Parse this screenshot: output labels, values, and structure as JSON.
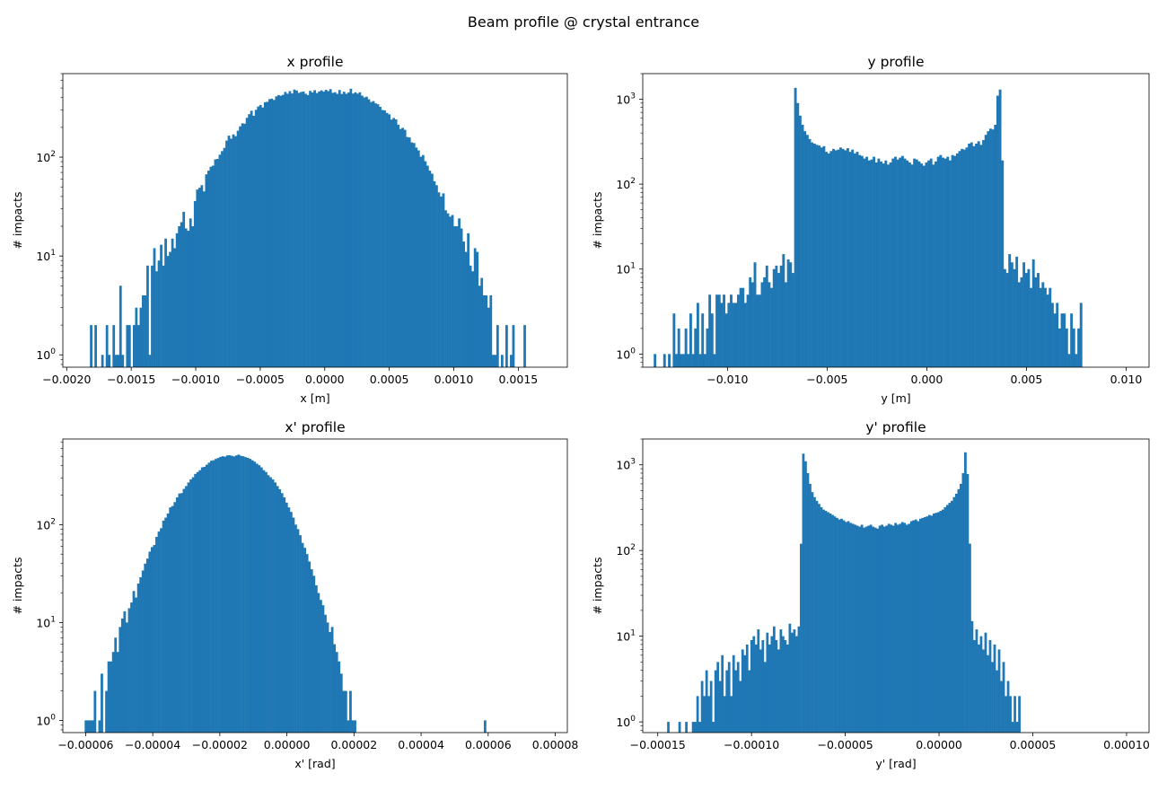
{
  "figure": {
    "suptitle": "Beam profile @ crystal entrance"
  },
  "chart_data": [
    {
      "type": "bar",
      "title": "x profile",
      "xlabel": "x [m]",
      "ylabel": "# impacts",
      "yscale": "log",
      "xlim": [
        -0.00203,
        0.00188
      ],
      "ylim": [
        0.75,
        700
      ],
      "xticks": [
        {
          "v": -0.002,
          "label": "−0.0020"
        },
        {
          "v": -0.0015,
          "label": "−0.0015"
        },
        {
          "v": -0.001,
          "label": "−0.0010"
        },
        {
          "v": -0.0005,
          "label": "−0.0005"
        },
        {
          "v": 0,
          "label": "0.0000"
        },
        {
          "v": 0.0005,
          "label": "0.0005"
        },
        {
          "v": 0.001,
          "label": "0.0010"
        },
        {
          "v": 0.0015,
          "label": "0.0015"
        }
      ],
      "yticks": [
        {
          "v": 1,
          "exp": "0"
        },
        {
          "v": 10,
          "exp": "1"
        },
        {
          "v": 100,
          "exp": "2"
        }
      ],
      "color": "#1f77b4",
      "bins": {
        "start": -0.00182,
        "width": 1.75e-05,
        "counts": [
          2,
          0,
          2,
          0,
          0,
          1,
          0,
          2,
          1,
          0,
          2,
          1,
          1,
          5,
          1,
          0,
          2,
          2,
          0,
          2,
          3,
          2,
          3,
          4,
          4,
          8,
          1,
          8,
          12,
          7,
          9,
          13,
          8,
          15,
          10,
          11,
          15,
          12,
          17,
          20,
          22,
          28,
          19,
          18,
          24,
          20,
          36,
          47,
          49,
          52,
          45,
          67,
          73,
          80,
          82,
          95,
          96,
          106,
          115,
          124,
          147,
          165,
          154,
          170,
          163,
          185,
          205,
          220,
          218,
          250,
          272,
          295,
          262,
          301,
          325,
          337,
          318,
          359,
          363,
          386,
          391,
          379,
          412,
          425,
          418,
          427,
          457,
          438,
          466,
          441,
          483,
          472,
          447,
          456,
          461,
          438,
          425,
          468,
          451,
          476,
          445,
          462,
          474,
          460,
          480,
          466,
          488,
          447,
          454,
          437,
          478,
          436,
          459,
          437,
          451,
          492,
          440,
          453,
          439,
          453,
          419,
          402,
          409,
          385,
          361,
          369,
          350,
          343,
          323,
          300,
          297,
          280,
          271,
          240,
          249,
          241,
          213,
          193,
          198,
          189,
          160,
          158,
          141,
          139,
          125,
          117,
          101,
          105,
          91,
          82,
          73,
          68,
          57,
          52,
          44,
          40,
          43,
          29,
          27,
          25,
          26,
          20,
          20,
          24,
          19,
          14,
          11,
          17,
          8,
          7,
          12,
          11,
          5,
          6,
          4,
          4,
          3,
          4,
          1,
          1,
          2,
          0,
          1,
          0,
          2,
          0,
          1,
          2,
          0,
          0,
          0,
          0,
          2
        ]
      }
    },
    {
      "type": "bar",
      "title": "y profile",
      "xlabel": "y [m]",
      "ylabel": "# impacts",
      "yscale": "log",
      "xlim": [
        -0.01425,
        0.01115
      ],
      "ylim": [
        0.7,
        2000
      ],
      "xticks": [
        {
          "v": -0.01,
          "label": "−0.010"
        },
        {
          "v": -0.005,
          "label": "−0.005"
        },
        {
          "v": 0,
          "label": "0.000"
        },
        {
          "v": 0.005,
          "label": "0.005"
        },
        {
          "v": 0.01,
          "label": "0.010"
        }
      ],
      "yticks": [
        {
          "v": 1,
          "exp": "0"
        },
        {
          "v": 10,
          "exp": "1"
        },
        {
          "v": 100,
          "exp": "2"
        },
        {
          "v": 1000,
          "exp": "3"
        }
      ],
      "color": "#1f77b4",
      "bins": {
        "start": -0.0137,
        "width": 0.0001194,
        "counts": [
          1,
          0,
          0,
          0,
          1,
          0,
          1,
          0,
          3,
          1,
          2,
          1,
          1,
          2,
          1,
          3,
          1,
          2,
          4,
          1,
          3,
          1,
          2,
          5,
          3,
          1,
          5,
          5,
          4,
          5,
          3,
          4,
          5,
          4,
          4,
          5,
          6,
          6,
          4,
          5,
          8,
          7,
          12,
          5,
          5,
          7,
          8,
          11,
          7,
          6,
          10,
          11,
          9,
          11,
          15,
          7,
          13,
          12,
          9,
          1360,
          900,
          640,
          500,
          420,
          380,
          340,
          310,
          300,
          290,
          285,
          270,
          280,
          240,
          230,
          245,
          260,
          250,
          255,
          270,
          260,
          250,
          265,
          240,
          255,
          230,
          240,
          220,
          215,
          200,
          210,
          190,
          195,
          210,
          180,
          200,
          185,
          175,
          190,
          170,
          180,
          200,
          210,
          195,
          205,
          215,
          200,
          190,
          180,
          170,
          200,
          195,
          185,
          175,
          165,
          180,
          190,
          200,
          170,
          185,
          210,
          220,
          205,
          200,
          210,
          190,
          220,
          215,
          230,
          245,
          260,
          255,
          270,
          300,
          310,
          280,
          300,
          320,
          290,
          330,
          380,
          420,
          450,
          440,
          500,
          1100,
          1300,
          190,
          10,
          9,
          15,
          12,
          10,
          14,
          7,
          8,
          12,
          9,
          10,
          6,
          13,
          8,
          9,
          6,
          7,
          6,
          5,
          6,
          4,
          3,
          4,
          2,
          3,
          3,
          2,
          1,
          3,
          2,
          1,
          2,
          4
        ]
      }
    },
    {
      "type": "bar",
      "title": "x' profile",
      "xlabel": "x' [rad]",
      "ylabel": "# impacts",
      "yscale": "log",
      "xlim": [
        -6.68e-05,
        8.36e-05
      ],
      "ylim": [
        0.75,
        750
      ],
      "xticks": [
        {
          "v": -6e-05,
          "label": "−0.00006"
        },
        {
          "v": -4e-05,
          "label": "−0.00004"
        },
        {
          "v": -2e-05,
          "label": "−0.00002"
        },
        {
          "v": 0,
          "label": "0.00000"
        },
        {
          "v": 2e-05,
          "label": "0.00002"
        },
        {
          "v": 4e-05,
          "label": "0.00004"
        },
        {
          "v": 6e-05,
          "label": "0.00006"
        },
        {
          "v": 8e-05,
          "label": "0.00008"
        }
      ],
      "yticks": [
        {
          "v": 1,
          "exp": "0"
        },
        {
          "v": 10,
          "exp": "1"
        },
        {
          "v": 100,
          "exp": "2"
        }
      ],
      "color": "#1f77b4",
      "bins": {
        "start": -6.03e-05,
        "width": 6.8e-07,
        "counts": [
          1,
          1,
          1,
          1,
          2,
          0,
          1,
          3,
          0,
          2,
          4,
          4,
          5,
          7,
          5,
          9,
          11,
          13,
          10,
          14,
          16,
          21,
          18,
          25,
          29,
          34,
          40,
          45,
          53,
          59,
          62,
          75,
          85,
          92,
          110,
          118,
          130,
          150,
          155,
          170,
          190,
          208,
          210,
          232,
          248,
          270,
          290,
          305,
          330,
          345,
          360,
          385,
          390,
          410,
          430,
          450,
          455,
          470,
          480,
          492,
          500,
          495,
          510,
          512,
          505,
          498,
          510,
          520,
          505,
          500,
          490,
          482,
          470,
          455,
          440,
          420,
          405,
          385,
          360,
          345,
          320,
          305,
          290,
          270,
          248,
          230,
          210,
          190,
          168,
          150,
          135,
          118,
          100,
          90,
          78,
          65,
          58,
          50,
          42,
          35,
          30,
          24,
          20,
          17,
          15,
          12,
          10,
          8,
          9,
          6,
          5,
          4,
          3,
          2,
          2,
          1,
          2,
          1,
          1,
          0,
          0,
          0,
          0,
          0,
          0,
          0,
          0,
          0,
          0,
          0,
          0,
          0,
          0,
          0,
          0,
          0,
          0,
          0,
          0,
          0,
          0,
          0,
          0,
          0,
          0,
          0,
          0,
          0,
          0,
          0,
          0,
          0,
          0,
          0,
          0,
          0,
          0,
          0,
          0,
          0,
          0,
          0,
          0,
          0,
          0,
          0,
          0,
          0,
          0,
          0,
          0,
          0,
          0,
          0,
          0,
          1
        ]
      }
    },
    {
      "type": "bar",
      "title": "y' profile",
      "xlabel": "y' [rad]",
      "ylabel": "# impacts",
      "yscale": "log",
      "xlim": [
        -0.000158,
        0.000112
      ],
      "ylim": [
        0.75,
        2000
      ],
      "xticks": [
        {
          "v": -0.00015,
          "label": "−0.00015"
        },
        {
          "v": -0.0001,
          "label": "−0.00010"
        },
        {
          "v": -5e-05,
          "label": "−0.00005"
        },
        {
          "v": 0,
          "label": "0.00000"
        },
        {
          "v": 5e-05,
          "label": "0.00005"
        },
        {
          "v": 0.0001,
          "label": "0.00010"
        }
      ],
      "yticks": [
        {
          "v": 1,
          "exp": "0"
        },
        {
          "v": 10,
          "exp": "1"
        },
        {
          "v": 100,
          "exp": "2"
        },
        {
          "v": 1000,
          "exp": "3"
        }
      ],
      "color": "#1f77b4",
      "bins": {
        "start": -0.000145,
        "width": 1.2e-06,
        "counts": [
          1,
          0,
          0,
          0,
          0,
          1,
          0,
          0,
          1,
          0,
          0,
          1,
          1,
          2,
          1,
          3,
          2,
          4,
          2,
          3,
          1,
          4,
          5,
          3,
          6,
          2,
          4,
          5,
          2,
          6,
          4,
          5,
          3,
          7,
          6,
          8,
          4,
          9,
          10,
          8,
          12,
          7,
          9,
          5,
          11,
          8,
          10,
          13,
          9,
          7,
          12,
          10,
          9,
          8,
          14,
          11,
          12,
          10,
          13,
          120,
          1350,
          1100,
          800,
          600,
          480,
          420,
          380,
          350,
          320,
          300,
          290,
          280,
          270,
          260,
          250,
          240,
          230,
          235,
          225,
          215,
          220,
          210,
          205,
          200,
          195,
          190,
          200,
          185,
          190,
          195,
          200,
          190,
          185,
          180,
          195,
          200,
          190,
          195,
          205,
          200,
          195,
          210,
          200,
          205,
          215,
          210,
          200,
          205,
          220,
          225,
          230,
          220,
          235,
          240,
          245,
          250,
          260,
          255,
          270,
          275,
          280,
          290,
          300,
          320,
          340,
          360,
          380,
          420,
          460,
          520,
          600,
          800,
          1400,
          780,
          120,
          15,
          9,
          12,
          8,
          10,
          7,
          11,
          6,
          9,
          5,
          8,
          4,
          7,
          3,
          5,
          2,
          3,
          2,
          1,
          2,
          1,
          2
        ]
      }
    }
  ]
}
